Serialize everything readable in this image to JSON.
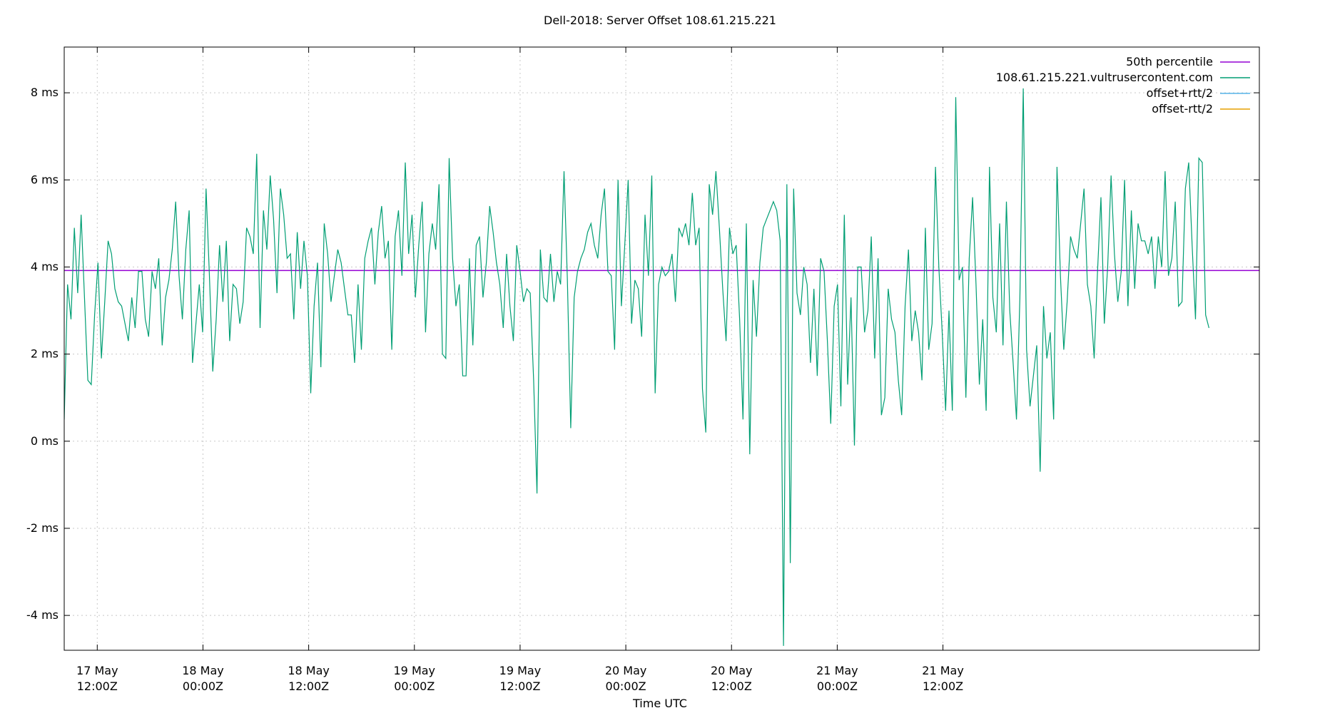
{
  "chart_data": {
    "type": "line",
    "title": "Dell-2018: Server Offset 108.61.215.221",
    "xlabel": "Time UTC",
    "ylabel": "",
    "y_unit": "ms",
    "ylim": [
      -4.8,
      9.05
    ],
    "xlim": [
      "2018-05-16T08:15Z",
      "2018-05-21T23:55Z"
    ],
    "grid": true,
    "legend_position": "top-right",
    "y_ticks": [
      {
        "value": -4,
        "label": "-4 ms"
      },
      {
        "value": -2,
        "label": "-2 ms"
      },
      {
        "value": 0,
        "label": "0 ms"
      },
      {
        "value": 2,
        "label": "2 ms"
      },
      {
        "value": 4,
        "label": "4 ms"
      },
      {
        "value": 6,
        "label": "6 ms"
      },
      {
        "value": 8,
        "label": "8 ms"
      }
    ],
    "x_ticks": [
      {
        "time": "2018-05-16T12:00Z",
        "date": "17 May",
        "time_label": "12:00Z"
      },
      {
        "time": "2018-05-17T00:00Z",
        "date": "18 May",
        "time_label": "00:00Z"
      },
      {
        "time": "2018-05-17T12:00Z",
        "date": "18 May",
        "time_label": "12:00Z"
      },
      {
        "time": "2018-05-18T00:00Z",
        "date": "19 May",
        "time_label": "00:00Z"
      },
      {
        "time": "2018-05-18T12:00Z",
        "date": "19 May",
        "time_label": "12:00Z"
      },
      {
        "time": "2018-05-19T00:00Z",
        "date": "20 May",
        "time_label": "00:00Z"
      },
      {
        "time": "2018-05-19T12:00Z",
        "date": "20 May",
        "time_label": "12:00Z"
      },
      {
        "time": "2018-05-20T00:00Z",
        "date": "21 May",
        "time_label": "00:00Z"
      },
      {
        "time": "2018-05-20T12:00Z",
        "date": "21 May",
        "time_label": "12:00Z"
      }
    ],
    "series": [
      {
        "name": "50th percentile",
        "color": "#9400d3",
        "kind": "constant",
        "value": 3.92
      },
      {
        "name": "108.61.215.221.vultrusercontent.com",
        "color": "#009e73",
        "kind": "line",
        "start": "2018-05-16T08:15Z",
        "interval_minutes": 23,
        "values": [
          0.5,
          3.6,
          2.8,
          4.9,
          3.4,
          5.2,
          3.3,
          1.4,
          1.3,
          2.9,
          4.1,
          1.9,
          3.2,
          4.6,
          4.3,
          3.5,
          3.2,
          3.1,
          2.7,
          2.3,
          3.3,
          2.6,
          3.9,
          3.9,
          2.8,
          2.4,
          3.9,
          3.5,
          4.2,
          2.2,
          3.3,
          3.7,
          4.4,
          5.5,
          3.8,
          2.8,
          4.4,
          5.3,
          1.8,
          2.7,
          3.6,
          2.5,
          5.8,
          3.8,
          1.6,
          2.8,
          4.5,
          3.2,
          4.6,
          2.3,
          3.6,
          3.5,
          2.7,
          3.2,
          4.9,
          4.7,
          4.3,
          6.6,
          2.6,
          5.3,
          4.4,
          6.1,
          5.1,
          3.4,
          5.8,
          5.2,
          4.2,
          4.3,
          2.8,
          4.8,
          3.5,
          4.6,
          3.8,
          1.1,
          3.1,
          4.1,
          1.7,
          5.0,
          4.3,
          3.2,
          3.8,
          4.4,
          4.1,
          3.5,
          2.9,
          2.9,
          1.8,
          3.6,
          2.1,
          4.2,
          4.6,
          4.9,
          3.6,
          4.8,
          5.4,
          4.2,
          4.6,
          2.1,
          4.7,
          5.3,
          3.8,
          6.4,
          4.3,
          5.2,
          3.3,
          4.5,
          5.5,
          2.5,
          4.3,
          5.0,
          4.4,
          5.9,
          2.0,
          1.9,
          6.5,
          4.2,
          3.1,
          3.6,
          1.5,
          1.5,
          4.2,
          2.2,
          4.5,
          4.7,
          3.3,
          4.1,
          5.4,
          4.8,
          4.1,
          3.6,
          2.6,
          4.3,
          3.1,
          2.3,
          4.5,
          3.9,
          3.2,
          3.5,
          3.4,
          1.4,
          -1.2,
          4.4,
          3.3,
          3.2,
          4.3,
          3.2,
          3.9,
          3.6,
          6.2,
          3.7,
          0.3,
          3.3,
          3.9,
          4.2,
          4.4,
          4.8,
          5.0,
          4.5,
          4.2,
          5.2,
          5.8,
          3.9,
          3.8,
          2.1,
          6.0,
          3.1,
          4.5,
          6.0,
          2.7,
          3.7,
          3.5,
          2.4,
          5.2,
          3.8,
          6.1,
          1.1,
          3.6,
          4.0,
          3.8,
          3.9,
          4.3,
          3.2,
          4.9,
          4.7,
          5.0,
          4.5,
          5.7,
          4.5,
          4.9,
          1.2,
          0.2,
          5.9,
          5.2,
          6.2,
          4.9,
          3.5,
          2.3,
          4.9,
          4.3,
          4.5,
          2.8,
          0.5,
          5.0,
          -0.3,
          3.7,
          2.4,
          4.1,
          4.9,
          5.1,
          5.3,
          5.5,
          5.3,
          4.6,
          -4.7,
          5.9,
          -2.8,
          5.8,
          3.4,
          2.9,
          4.0,
          3.6,
          1.8,
          3.5,
          1.5,
          4.2,
          3.9,
          2.3,
          0.4,
          3.1,
          3.6,
          0.8,
          5.2,
          1.3,
          3.3,
          -0.1,
          4.0,
          4.0,
          2.5,
          3.0,
          4.7,
          1.9,
          4.2,
          0.6,
          1.0,
          3.5,
          2.8,
          2.5,
          1.4,
          0.6,
          3.1,
          4.4,
          2.3,
          3.0,
          2.5,
          1.4,
          4.9,
          2.1,
          2.7,
          6.3,
          4.0,
          2.5,
          0.7,
          3.0,
          0.7,
          7.9,
          3.7,
          4.0,
          1.0,
          4.2,
          5.6,
          3.6,
          1.3,
          2.8,
          0.7,
          6.3,
          3.3,
          2.5,
          5.0,
          2.2,
          5.5,
          3.0,
          1.8,
          0.5,
          3.3,
          8.1,
          2.1,
          0.8,
          1.5,
          2.2,
          -0.7,
          3.1,
          1.9,
          2.5,
          0.5,
          6.3,
          3.8,
          2.1,
          3.2,
          4.7,
          4.4,
          4.2,
          5.0,
          5.8,
          3.6,
          3.1,
          1.9,
          3.9,
          5.6,
          2.7,
          4.0,
          6.1,
          4.3,
          3.2,
          3.9,
          6.0,
          3.1,
          5.3,
          3.5,
          5.0,
          4.6,
          4.6,
          4.3,
          4.7,
          3.5,
          4.7,
          4.0,
          6.2,
          3.8,
          4.2,
          5.5,
          3.1,
          3.2,
          5.8,
          6.4,
          4.5,
          2.8,
          6.5,
          6.4,
          2.9,
          2.6
        ]
      },
      {
        "name": "offset+rtt/2",
        "color": "#56b4e9",
        "kind": "legend-only"
      },
      {
        "name": "offset-rtt/2",
        "color": "#e69f00",
        "kind": "legend-only"
      }
    ]
  }
}
